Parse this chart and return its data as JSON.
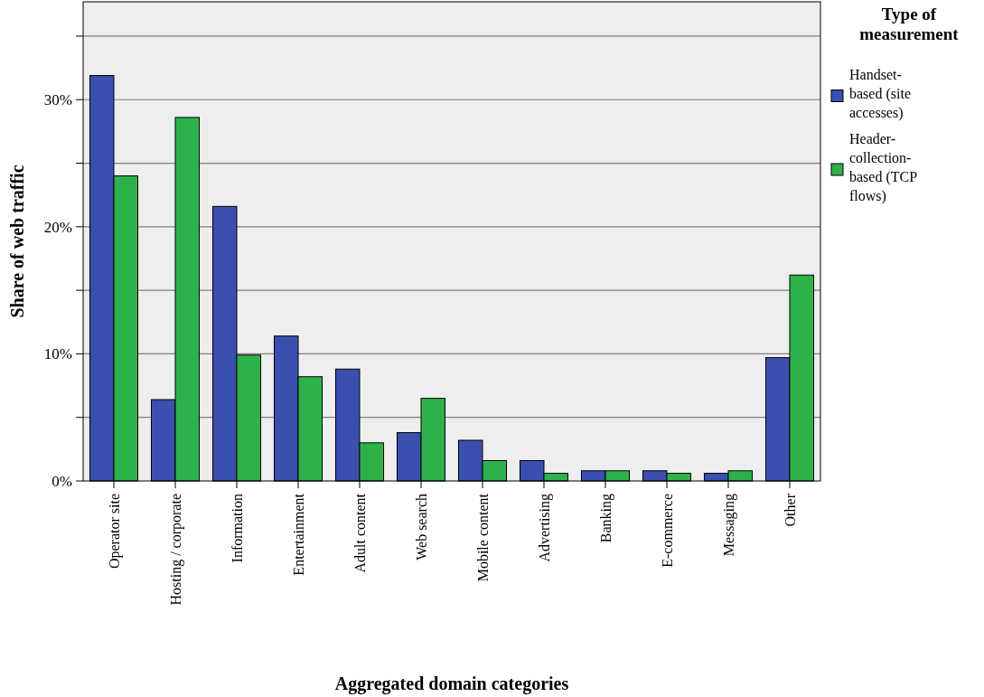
{
  "chart_data": {
    "type": "bar",
    "xlabel": "Aggregated domain categories",
    "ylabel": "Share of web traffic",
    "legend_title": "Type of measurement",
    "categories": [
      "Operator site",
      "Hosting / corporate",
      "Information",
      "Entertainment",
      "Adult content",
      "Web search",
      "Mobile content",
      "Advertising",
      "Banking",
      "E-commerce",
      "Messaging",
      "Other"
    ],
    "series": [
      {
        "name": "Handset-based (site accesses)",
        "color": "#3a4fb0",
        "values": [
          31.9,
          6.4,
          21.6,
          11.4,
          8.8,
          3.8,
          3.2,
          1.6,
          0.8,
          0.8,
          0.6,
          9.7
        ]
      },
      {
        "name": "Header-collection-based (TCP flows)",
        "color": "#2db24a",
        "values": [
          24.0,
          28.6,
          9.9,
          8.2,
          3.0,
          6.5,
          1.6,
          0.6,
          0.8,
          0.6,
          0.8,
          16.2
        ]
      }
    ],
    "ylim": [
      0,
      37.7
    ],
    "yticks": [
      {
        "value": 0,
        "label": "0%"
      },
      {
        "value": 5,
        "label": null
      },
      {
        "value": 10,
        "label": "10%"
      },
      {
        "value": 15,
        "label": null
      },
      {
        "value": 20,
        "label": "20%"
      },
      {
        "value": 25,
        "label": null
      },
      {
        "value": 30,
        "label": "30%"
      },
      {
        "value": 35,
        "label": null
      }
    ],
    "grid": "y",
    "legend": "right"
  }
}
